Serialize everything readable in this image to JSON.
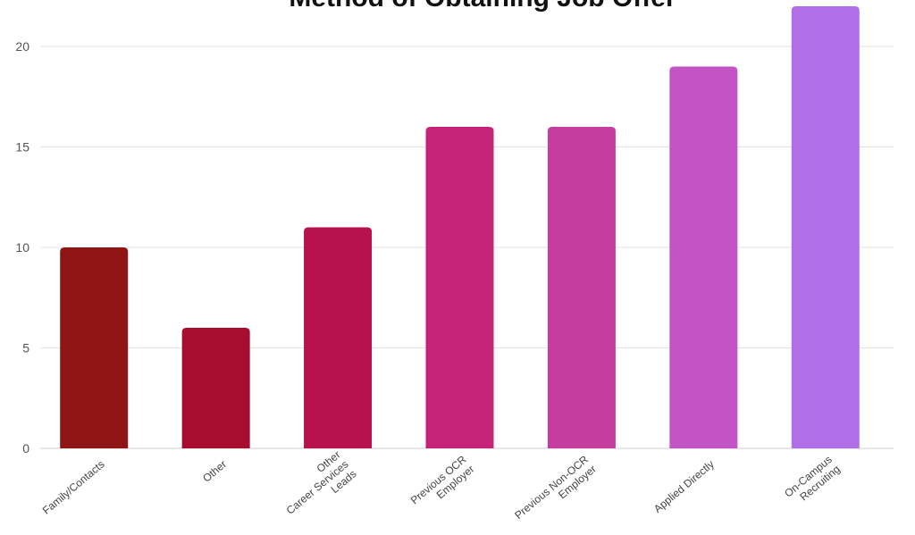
{
  "chart_data": {
    "type": "bar",
    "title": "Method of Obtaining Job Offer",
    "categories": [
      [
        "Family/Contacts"
      ],
      [
        "Other"
      ],
      [
        "Other",
        "Career Services",
        "Leads"
      ],
      [
        "Previous OCR",
        "Employer"
      ],
      [
        "Previous Non-OCR",
        "Employer"
      ],
      [
        "Applied Directly"
      ],
      [
        "On-Campus",
        "Recruiting"
      ]
    ],
    "values": [
      10,
      6,
      11,
      16,
      16,
      19,
      22
    ],
    "colors": [
      "#8f1414",
      "#a60d2e",
      "#b8124d",
      "#c42378",
      "#c53d9f",
      "#c454c6",
      "#b06fe6"
    ],
    "xlabel": "",
    "ylabel": "",
    "ylim": [
      0,
      22
    ],
    "yticks": [
      0,
      5,
      10,
      15,
      20
    ],
    "grid": true,
    "legend": "none"
  }
}
